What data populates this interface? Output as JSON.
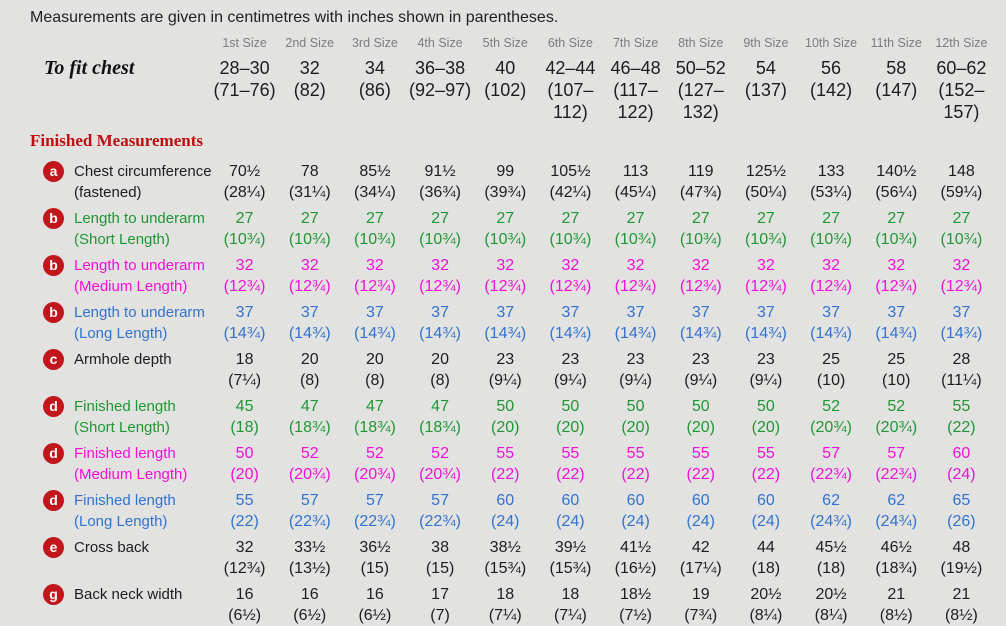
{
  "title": "Measurements are given in centimetres with inches shown in parentheses.",
  "colors": {
    "background": "#e2e2e1",
    "badge_red": "#c1161b",
    "heading_red": "#c00d0d",
    "green": "#1f9733",
    "magenta": "#f40fd9",
    "blue": "#3173cf",
    "black": "#1d1d1d",
    "gray_header": "#7c7c7c"
  },
  "table": {
    "size_headers": [
      "1st Size",
      "2nd Size",
      "3rd Size",
      "4th Size",
      "5th Size",
      "6th Size",
      "7th Size",
      "8th Size",
      "9th Size",
      "10th Size",
      "11th Size",
      "12th Size"
    ],
    "to_fit_chest": {
      "label": "To fit chest",
      "values": [
        {
          "cm": "28–30",
          "in": "(71–76)"
        },
        {
          "cm": "32",
          "in": "(82)"
        },
        {
          "cm": "34",
          "in": "(86)"
        },
        {
          "cm": "36–38",
          "in": "(92–97)"
        },
        {
          "cm": "40",
          "in": "(102)"
        },
        {
          "cm": "42–44",
          "in": "(107–112)"
        },
        {
          "cm": "46–48",
          "in": "(117–122)"
        },
        {
          "cm": "50–52",
          "in": "(127–132)"
        },
        {
          "cm": "54",
          "in": "(137)"
        },
        {
          "cm": "56",
          "in": "(142)"
        },
        {
          "cm": "58",
          "in": "(147)"
        },
        {
          "cm": "60–62",
          "in": "(152–157)"
        }
      ]
    },
    "section_heading": "Finished Measurements",
    "rows": [
      {
        "badge": "a",
        "label": "Chest circumference",
        "sublabel": "(fastened)",
        "color": "black",
        "values": [
          {
            "cm": "70½",
            "in": "(28¼)"
          },
          {
            "cm": "78",
            "in": "(31¼)"
          },
          {
            "cm": "85½",
            "in": "(34¼)"
          },
          {
            "cm": "91½",
            "in": "(36¾)"
          },
          {
            "cm": "99",
            "in": "(39¾)"
          },
          {
            "cm": "105½",
            "in": "(42¼)"
          },
          {
            "cm": "113",
            "in": "(45¼)"
          },
          {
            "cm": "119",
            "in": "(47¾)"
          },
          {
            "cm": "125½",
            "in": "(50¼)"
          },
          {
            "cm": "133",
            "in": "(53¼)"
          },
          {
            "cm": "140½",
            "in": "(56¼)"
          },
          {
            "cm": "148",
            "in": "(59¼)"
          }
        ]
      },
      {
        "badge": "b",
        "label": "Length to underarm",
        "sublabel": "(Short Length)",
        "color": "green",
        "values": [
          {
            "cm": "27",
            "in": "(10¾)"
          },
          {
            "cm": "27",
            "in": "(10¾)"
          },
          {
            "cm": "27",
            "in": "(10¾)"
          },
          {
            "cm": "27",
            "in": "(10¾)"
          },
          {
            "cm": "27",
            "in": "(10¾)"
          },
          {
            "cm": "27",
            "in": "(10¾)"
          },
          {
            "cm": "27",
            "in": "(10¾)"
          },
          {
            "cm": "27",
            "in": "(10¾)"
          },
          {
            "cm": "27",
            "in": "(10¾)"
          },
          {
            "cm": "27",
            "in": "(10¾)"
          },
          {
            "cm": "27",
            "in": "(10¾)"
          },
          {
            "cm": "27",
            "in": "(10¾)"
          }
        ]
      },
      {
        "badge": "b",
        "label": "Length to underarm",
        "sublabel": "(Medium Length)",
        "color": "magenta",
        "values": [
          {
            "cm": "32",
            "in": "(12¾)"
          },
          {
            "cm": "32",
            "in": "(12¾)"
          },
          {
            "cm": "32",
            "in": "(12¾)"
          },
          {
            "cm": "32",
            "in": "(12¾)"
          },
          {
            "cm": "32",
            "in": "(12¾)"
          },
          {
            "cm": "32",
            "in": "(12¾)"
          },
          {
            "cm": "32",
            "in": "(12¾)"
          },
          {
            "cm": "32",
            "in": "(12¾)"
          },
          {
            "cm": "32",
            "in": "(12¾)"
          },
          {
            "cm": "32",
            "in": "(12¾)"
          },
          {
            "cm": "32",
            "in": "(12¾)"
          },
          {
            "cm": "32",
            "in": "(12¾)"
          }
        ]
      },
      {
        "badge": "b",
        "label": "Length to underarm",
        "sublabel": "(Long Length)",
        "color": "blue",
        "values": [
          {
            "cm": "37",
            "in": "(14¾)"
          },
          {
            "cm": "37",
            "in": "(14¾)"
          },
          {
            "cm": "37",
            "in": "(14¾)"
          },
          {
            "cm": "37",
            "in": "(14¾)"
          },
          {
            "cm": "37",
            "in": "(14¾)"
          },
          {
            "cm": "37",
            "in": "(14¾)"
          },
          {
            "cm": "37",
            "in": "(14¾)"
          },
          {
            "cm": "37",
            "in": "(14¾)"
          },
          {
            "cm": "37",
            "in": "(14¾)"
          },
          {
            "cm": "37",
            "in": "(14¾)"
          },
          {
            "cm": "37",
            "in": "(14¾)"
          },
          {
            "cm": "37",
            "in": "(14¾)"
          }
        ]
      },
      {
        "badge": "c",
        "label": "Armhole depth",
        "sublabel": "",
        "color": "black",
        "values": [
          {
            "cm": "18",
            "in": "(7¼)"
          },
          {
            "cm": "20",
            "in": "(8)"
          },
          {
            "cm": "20",
            "in": "(8)"
          },
          {
            "cm": "20",
            "in": "(8)"
          },
          {
            "cm": "23",
            "in": "(9¼)"
          },
          {
            "cm": "23",
            "in": "(9¼)"
          },
          {
            "cm": "23",
            "in": "(9¼)"
          },
          {
            "cm": "23",
            "in": "(9¼)"
          },
          {
            "cm": "23",
            "in": "(9¼)"
          },
          {
            "cm": "25",
            "in": "(10)"
          },
          {
            "cm": "25",
            "in": "(10)"
          },
          {
            "cm": "28",
            "in": "(11¼)"
          }
        ]
      },
      {
        "badge": "d",
        "label": "Finished length",
        "sublabel": "(Short Length)",
        "color": "green",
        "values": [
          {
            "cm": "45",
            "in": "(18)"
          },
          {
            "cm": "47",
            "in": "(18¾)"
          },
          {
            "cm": "47",
            "in": "(18¾)"
          },
          {
            "cm": "47",
            "in": "(18¾)"
          },
          {
            "cm": "50",
            "in": "(20)"
          },
          {
            "cm": "50",
            "in": "(20)"
          },
          {
            "cm": "50",
            "in": "(20)"
          },
          {
            "cm": "50",
            "in": "(20)"
          },
          {
            "cm": "50",
            "in": "(20)"
          },
          {
            "cm": "52",
            "in": "(20¾)"
          },
          {
            "cm": "52",
            "in": "(20¾)"
          },
          {
            "cm": "55",
            "in": "(22)"
          }
        ]
      },
      {
        "badge": "d",
        "label": "Finished length",
        "sublabel": "(Medium Length)",
        "color": "magenta",
        "values": [
          {
            "cm": "50",
            "in": "(20)"
          },
          {
            "cm": "52",
            "in": "(20¾)"
          },
          {
            "cm": "52",
            "in": "(20¾)"
          },
          {
            "cm": "52",
            "in": "(20¾)"
          },
          {
            "cm": "55",
            "in": "(22)"
          },
          {
            "cm": "55",
            "in": "(22)"
          },
          {
            "cm": "55",
            "in": "(22)"
          },
          {
            "cm": "55",
            "in": "(22)"
          },
          {
            "cm": "55",
            "in": "(22)"
          },
          {
            "cm": "57",
            "in": "(22¾)"
          },
          {
            "cm": "57",
            "in": "(22¾)"
          },
          {
            "cm": "60",
            "in": "(24)"
          }
        ]
      },
      {
        "badge": "d",
        "label": "Finished length",
        "sublabel": "(Long Length)",
        "color": "blue",
        "values": [
          {
            "cm": "55",
            "in": "(22)"
          },
          {
            "cm": "57",
            "in": "(22¾)"
          },
          {
            "cm": "57",
            "in": "(22¾)"
          },
          {
            "cm": "57",
            "in": "(22¾)"
          },
          {
            "cm": "60",
            "in": "(24)"
          },
          {
            "cm": "60",
            "in": "(24)"
          },
          {
            "cm": "60",
            "in": "(24)"
          },
          {
            "cm": "60",
            "in": "(24)"
          },
          {
            "cm": "60",
            "in": "(24)"
          },
          {
            "cm": "62",
            "in": "(24¾)"
          },
          {
            "cm": "62",
            "in": "(24¾)"
          },
          {
            "cm": "65",
            "in": "(26)"
          }
        ]
      },
      {
        "badge": "e",
        "label": "Cross back",
        "sublabel": "",
        "color": "black",
        "values": [
          {
            "cm": "32",
            "in": "(12¾)"
          },
          {
            "cm": "33½",
            "in": "(13½)"
          },
          {
            "cm": "36½",
            "in": "(15)"
          },
          {
            "cm": "38",
            "in": "(15)"
          },
          {
            "cm": "38½",
            "in": "(15¾)"
          },
          {
            "cm": "39½",
            "in": "(15¾)"
          },
          {
            "cm": "41½",
            "in": "(16½)"
          },
          {
            "cm": "42",
            "in": "(17¼)"
          },
          {
            "cm": "44",
            "in": "(18)"
          },
          {
            "cm": "45½",
            "in": "(18)"
          },
          {
            "cm": "46½",
            "in": "(18¾)"
          },
          {
            "cm": "48",
            "in": "(19½)"
          }
        ]
      },
      {
        "badge": "g",
        "label": "Back neck width",
        "sublabel": "",
        "color": "black",
        "values": [
          {
            "cm": "16",
            "in": "(6½)"
          },
          {
            "cm": "16",
            "in": "(6½)"
          },
          {
            "cm": "16",
            "in": "(6½)"
          },
          {
            "cm": "17",
            "in": "(7)"
          },
          {
            "cm": "18",
            "in": "(7¼)"
          },
          {
            "cm": "18",
            "in": "(7¼)"
          },
          {
            "cm": "18½",
            "in": "(7½)"
          },
          {
            "cm": "19",
            "in": "(7¾)"
          },
          {
            "cm": "20½",
            "in": "(8¼)"
          },
          {
            "cm": "20½",
            "in": "(8¼)"
          },
          {
            "cm": "21",
            "in": "(8½)"
          },
          {
            "cm": "21",
            "in": "(8½)"
          }
        ]
      }
    ]
  }
}
